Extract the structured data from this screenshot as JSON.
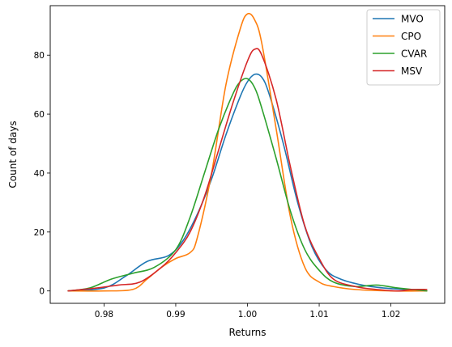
{
  "chart_data": {
    "type": "line",
    "title": "",
    "xlabel": "Returns",
    "ylabel": "Count of days",
    "xlim": [
      0.9725,
      1.0275
    ],
    "ylim": [
      -4.2,
      96.8
    ],
    "x_ticks": [
      0.98,
      0.99,
      1.0,
      1.01,
      1.02
    ],
    "x_tick_labels": [
      "0.98",
      "0.99",
      "1.00",
      "1.01",
      "1.02"
    ],
    "y_ticks": [
      0,
      20,
      40,
      60,
      80
    ],
    "y_tick_labels": [
      "0",
      "20",
      "40",
      "60",
      "80"
    ],
    "grid": false,
    "legend_position": "top-right",
    "series": [
      {
        "name": "MVO",
        "color": "#1f77b4",
        "x": [
          0.975,
          0.98,
          0.983,
          0.986,
          0.989,
          0.991,
          0.993,
          0.995,
          0.997,
          0.999,
          1.0,
          1.001,
          1.002,
          1.003,
          1.005,
          1.007,
          1.009,
          1.011,
          1.013,
          1.016,
          1.019,
          1.022,
          1.025
        ],
        "y": [
          0,
          1,
          5,
          10,
          12,
          17,
          26,
          38,
          53,
          66,
          71,
          73.5,
          72.5,
          67,
          50,
          30,
          15,
          7,
          4,
          2,
          1,
          0.5,
          0
        ]
      },
      {
        "name": "CPO",
        "color": "#ff7f0e",
        "x": [
          0.975,
          0.98,
          0.984,
          0.986,
          0.988,
          0.99,
          0.992,
          0.993,
          0.995,
          0.997,
          0.999,
          1.0,
          1.001,
          1.002,
          1.004,
          1.006,
          1.008,
          1.01,
          1.012,
          1.015,
          1.02,
          1.025
        ],
        "y": [
          0,
          0,
          0.5,
          4,
          8,
          11,
          13,
          18,
          40,
          70,
          89,
          94,
          92,
          84,
          55,
          25,
          8,
          3,
          1.5,
          0.5,
          0,
          0
        ]
      },
      {
        "name": "CVAR",
        "color": "#2ca02c",
        "x": [
          0.975,
          0.978,
          0.981,
          0.984,
          0.987,
          0.99,
          0.992,
          0.994,
          0.996,
          0.998,
          0.999,
          1.0,
          1.001,
          1.002,
          1.004,
          1.006,
          1.008,
          1.01,
          1.012,
          1.015,
          1.018,
          1.021,
          1.025
        ],
        "y": [
          0,
          1,
          4,
          6,
          8,
          14,
          25,
          40,
          55,
          67,
          71,
          72,
          69,
          62,
          45,
          27,
          14,
          7,
          3,
          1.5,
          2,
          1,
          0
        ]
      },
      {
        "name": "MSV",
        "color": "#d62728",
        "x": [
          0.975,
          0.979,
          0.982,
          0.985,
          0.988,
          0.99,
          0.992,
          0.994,
          0.996,
          0.998,
          1.0,
          1.001,
          1.002,
          1.004,
          1.006,
          1.008,
          1.01,
          1.012,
          1.015,
          1.018,
          1.021,
          1.023,
          1.025
        ],
        "y": [
          0,
          1,
          2,
          3,
          8,
          13,
          20,
          32,
          48,
          64,
          78,
          82,
          80,
          65,
          42,
          22,
          11,
          4,
          1.5,
          0.5,
          0,
          0.5,
          0.5
        ]
      }
    ]
  }
}
